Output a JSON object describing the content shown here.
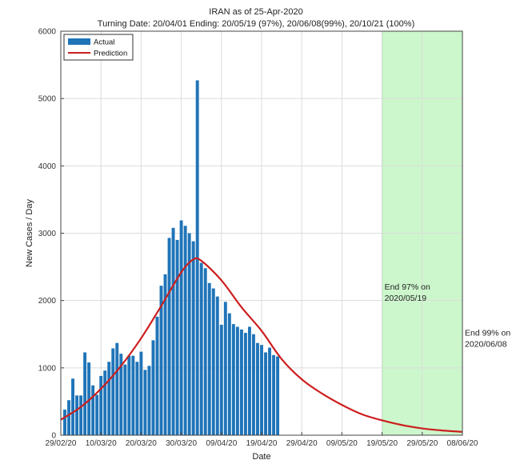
{
  "chart_data": {
    "type": "bar",
    "title": "IRAN as of 25-Apr-2020",
    "subtitle": "Turning Date: 20/04/01   Ending: 20/05/19 (97%), 20/06/08(99%), 20/10/21 (100%)",
    "xlabel": "Date",
    "ylabel": "New Cases / Day",
    "x_start": "2020-02-29",
    "x_end": "2020-06-08",
    "ylim": [
      0,
      6000
    ],
    "yticks": [
      0,
      1000,
      2000,
      3000,
      4000,
      5000,
      6000
    ],
    "xtick_labels": [
      "29/02/20",
      "10/03/20",
      "20/03/20",
      "30/03/20",
      "09/04/20",
      "19/04/20",
      "29/04/20",
      "09/05/20",
      "19/05/20",
      "29/05/20",
      "08/06/20"
    ],
    "grid": true,
    "legend_placement": "top-left",
    "legend": [
      "Actual",
      "Prediction"
    ],
    "colors": {
      "actual": "#1f74b8",
      "prediction": "#cc1f1f",
      "highlight": "#ccf7cc",
      "highlight_edge": "#5fd75f"
    },
    "highlight_range": [
      "2020-05-19",
      "2020-06-08"
    ],
    "series": [
      {
        "name": "Actual",
        "type": "bar",
        "start_date": "2020-03-01",
        "values": [
          380,
          520,
          840,
          590,
          590,
          1230,
          1080,
          740,
          600,
          880,
          960,
          1090,
          1290,
          1370,
          1210,
          1050,
          1180,
          1180,
          1090,
          1240,
          970,
          1030,
          1410,
          1760,
          2220,
          2390,
          2930,
          3080,
          2900,
          3190,
          3110,
          3000,
          2880,
          5270,
          2560,
          2480,
          2260,
          2180,
          2060,
          1640,
          1980,
          1810,
          1650,
          1610,
          1570,
          1520,
          1610,
          1500,
          1370,
          1340,
          1230,
          1300,
          1190,
          1170
        ]
      },
      {
        "name": "Prediction",
        "type": "line",
        "points": [
          [
            "2020-02-29",
            230
          ],
          [
            "2020-03-05",
            420
          ],
          [
            "2020-03-10",
            690
          ],
          [
            "2020-03-15",
            1030
          ],
          [
            "2020-03-20",
            1440
          ],
          [
            "2020-03-25",
            1920
          ],
          [
            "2020-03-30",
            2420
          ],
          [
            "2020-04-02",
            2610
          ],
          [
            "2020-04-04",
            2590
          ],
          [
            "2020-04-09",
            2300
          ],
          [
            "2020-04-14",
            1900
          ],
          [
            "2020-04-19",
            1550
          ],
          [
            "2020-04-24",
            1130
          ],
          [
            "2020-04-29",
            830
          ],
          [
            "2020-05-04",
            620
          ],
          [
            "2020-05-09",
            450
          ],
          [
            "2020-05-14",
            310
          ],
          [
            "2020-05-19",
            220
          ],
          [
            "2020-05-24",
            150
          ],
          [
            "2020-05-29",
            100
          ],
          [
            "2020-06-03",
            70
          ],
          [
            "2020-06-08",
            50
          ]
        ]
      }
    ],
    "annotations": [
      {
        "text_lines": [
          "End 97% on",
          "2020/05/19"
        ],
        "date": "2020-05-19",
        "y": 2160
      },
      {
        "text_lines": [
          "End 99% on",
          "2020/06/08"
        ],
        "date": "2020-06-08",
        "y": 1480
      }
    ]
  }
}
